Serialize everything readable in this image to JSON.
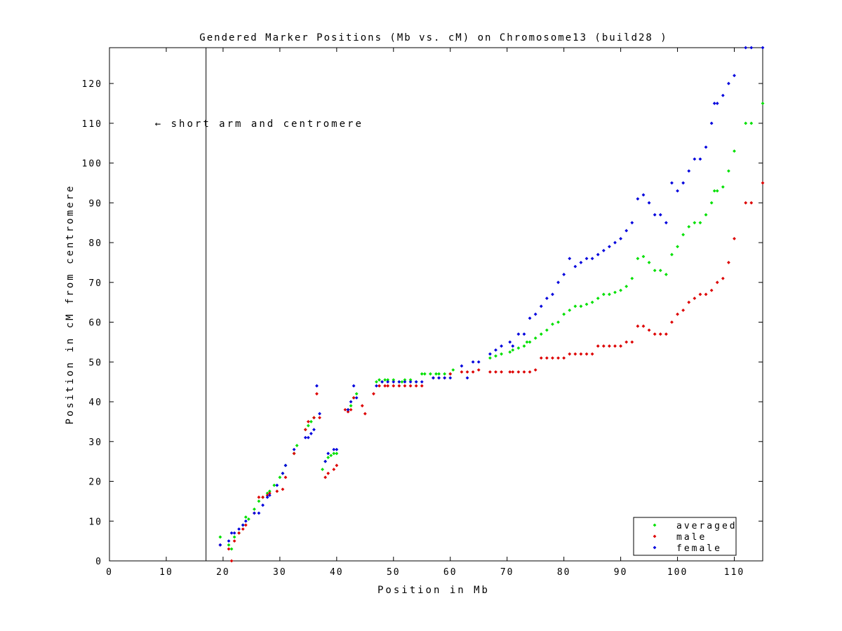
{
  "chart_data": {
    "type": "scatter",
    "title": "Gendered Marker Positions (Mb vs. cM) on Chromosome13 (build28 )",
    "xlabel": "Position in Mb",
    "ylabel": "Position in cM from centromere",
    "xlim": [
      0,
      115
    ],
    "ylim": [
      0,
      129
    ],
    "xticks": [
      0,
      10,
      20,
      30,
      40,
      50,
      60,
      70,
      80,
      90,
      100,
      110
    ],
    "yticks": [
      0,
      10,
      20,
      30,
      40,
      50,
      60,
      70,
      80,
      90,
      100,
      110,
      120
    ],
    "grid": false,
    "legend_position": "bottom-right",
    "centromere_line_x": 17,
    "annotation": {
      "text": "← short arm and centromere",
      "x": 8,
      "y": 110
    },
    "series": [
      {
        "name": "averaged",
        "color": "#00e000",
        "points": [
          [
            19.5,
            6
          ],
          [
            21,
            4
          ],
          [
            21.5,
            3
          ],
          [
            22,
            6
          ],
          [
            22.8,
            7
          ],
          [
            23.5,
            9
          ],
          [
            24,
            11
          ],
          [
            24.5,
            10.5
          ],
          [
            25.5,
            13
          ],
          [
            26.3,
            15
          ],
          [
            27,
            16
          ],
          [
            27.8,
            17
          ],
          [
            28.2,
            17.5
          ],
          [
            29,
            19
          ],
          [
            30,
            21
          ],
          [
            30.5,
            22
          ],
          [
            31,
            24
          ],
          [
            32.5,
            27
          ],
          [
            33,
            29
          ],
          [
            34.5,
            33
          ],
          [
            35,
            34
          ],
          [
            35.5,
            35
          ],
          [
            36,
            36
          ],
          [
            37.5,
            23
          ],
          [
            38,
            25
          ],
          [
            38.5,
            26
          ],
          [
            39,
            26.5
          ],
          [
            39.5,
            27
          ],
          [
            40,
            27
          ],
          [
            42,
            38
          ],
          [
            42.5,
            39
          ],
          [
            43,
            41
          ],
          [
            43.5,
            42
          ],
          [
            47,
            45
          ],
          [
            47.5,
            45.5
          ],
          [
            48,
            45
          ],
          [
            48.5,
            45.5
          ],
          [
            49,
            45.5
          ],
          [
            50,
            45.5
          ],
          [
            51,
            45
          ],
          [
            51.5,
            45
          ],
          [
            52,
            45.5
          ],
          [
            53,
            45.5
          ],
          [
            54,
            45
          ],
          [
            55,
            47
          ],
          [
            55.5,
            47
          ],
          [
            56.5,
            47
          ],
          [
            57.5,
            47
          ],
          [
            58,
            47
          ],
          [
            59,
            47
          ],
          [
            60,
            47
          ],
          [
            60.5,
            48
          ],
          [
            67,
            51
          ],
          [
            68,
            51.5
          ],
          [
            69,
            52
          ],
          [
            70.5,
            52.5
          ],
          [
            71,
            53
          ],
          [
            72,
            53.5
          ],
          [
            73,
            54
          ],
          [
            73.5,
            55
          ],
          [
            74,
            55
          ],
          [
            75,
            56
          ],
          [
            76,
            57
          ],
          [
            77,
            58
          ],
          [
            78,
            59.5
          ],
          [
            79,
            60
          ],
          [
            80,
            62
          ],
          [
            81,
            63
          ],
          [
            82,
            64
          ],
          [
            83,
            64
          ],
          [
            84,
            64.5
          ],
          [
            85,
            65
          ],
          [
            86,
            66
          ],
          [
            87,
            67
          ],
          [
            88,
            67
          ],
          [
            89,
            67.5
          ],
          [
            90,
            68
          ],
          [
            91,
            69
          ],
          [
            92,
            71
          ],
          [
            93,
            76
          ],
          [
            94,
            76.5
          ],
          [
            95,
            75
          ],
          [
            96,
            73
          ],
          [
            97,
            73
          ],
          [
            98,
            72
          ],
          [
            99,
            77
          ],
          [
            100,
            79
          ],
          [
            101,
            82
          ],
          [
            102,
            84
          ],
          [
            103,
            85
          ],
          [
            104,
            85
          ],
          [
            105,
            87
          ],
          [
            106,
            90
          ],
          [
            106.5,
            93
          ],
          [
            107,
            93
          ],
          [
            108,
            94
          ],
          [
            109,
            98
          ],
          [
            110,
            103
          ],
          [
            112,
            110
          ],
          [
            113,
            110
          ],
          [
            115,
            115
          ]
        ]
      },
      {
        "name": "male",
        "color": "#dd0000",
        "points": [
          [
            19.5,
            4
          ],
          [
            21,
            3
          ],
          [
            21.5,
            0
          ],
          [
            22,
            5
          ],
          [
            22.8,
            7
          ],
          [
            23.5,
            8
          ],
          [
            24,
            9
          ],
          [
            25.5,
            12
          ],
          [
            26.3,
            16
          ],
          [
            27,
            16
          ],
          [
            27.8,
            16.5
          ],
          [
            28.2,
            17
          ],
          [
            29.5,
            17.5
          ],
          [
            30.5,
            18
          ],
          [
            31,
            21
          ],
          [
            32.5,
            27
          ],
          [
            34.5,
            33
          ],
          [
            35,
            35
          ],
          [
            36,
            36
          ],
          [
            36.5,
            42
          ],
          [
            37,
            36
          ],
          [
            38,
            21
          ],
          [
            38.5,
            22
          ],
          [
            39.5,
            23
          ],
          [
            40,
            24
          ],
          [
            41.5,
            38
          ],
          [
            42,
            37.5
          ],
          [
            42.5,
            38
          ],
          [
            43,
            41
          ],
          [
            44.5,
            39
          ],
          [
            45,
            37
          ],
          [
            46.5,
            42
          ],
          [
            47.5,
            44
          ],
          [
            48.5,
            44
          ],
          [
            49,
            44
          ],
          [
            50,
            44
          ],
          [
            51,
            44
          ],
          [
            52,
            44
          ],
          [
            53,
            44
          ],
          [
            54,
            44
          ],
          [
            55,
            44
          ],
          [
            57,
            46
          ],
          [
            58,
            46
          ],
          [
            59,
            46
          ],
          [
            60,
            47
          ],
          [
            62,
            47.5
          ],
          [
            63,
            47.5
          ],
          [
            64,
            47.5
          ],
          [
            65,
            48
          ],
          [
            67,
            47.5
          ],
          [
            68,
            47.5
          ],
          [
            69,
            47.5
          ],
          [
            70.5,
            47.5
          ],
          [
            71,
            47.5
          ],
          [
            72,
            47.5
          ],
          [
            73,
            47.5
          ],
          [
            74,
            47.5
          ],
          [
            75,
            48
          ],
          [
            76,
            51
          ],
          [
            77,
            51
          ],
          [
            78,
            51
          ],
          [
            79,
            51
          ],
          [
            80,
            51
          ],
          [
            81,
            52
          ],
          [
            82,
            52
          ],
          [
            83,
            52
          ],
          [
            84,
            52
          ],
          [
            85,
            52
          ],
          [
            86,
            54
          ],
          [
            87,
            54
          ],
          [
            88,
            54
          ],
          [
            89,
            54
          ],
          [
            90,
            54
          ],
          [
            91,
            55
          ],
          [
            92,
            55
          ],
          [
            93,
            59
          ],
          [
            94,
            59
          ],
          [
            95,
            58
          ],
          [
            96,
            57
          ],
          [
            97,
            57
          ],
          [
            98,
            57
          ],
          [
            99,
            60
          ],
          [
            100,
            62
          ],
          [
            101,
            63
          ],
          [
            102,
            65
          ],
          [
            103,
            66
          ],
          [
            104,
            67
          ],
          [
            105,
            67
          ],
          [
            106,
            68
          ],
          [
            107,
            70
          ],
          [
            108,
            71
          ],
          [
            109,
            75
          ],
          [
            110,
            81
          ],
          [
            112,
            90
          ],
          [
            113,
            90
          ],
          [
            115,
            95
          ]
        ]
      },
      {
        "name": "female",
        "color": "#0000dd",
        "points": [
          [
            19.5,
            4
          ],
          [
            21,
            5
          ],
          [
            21.5,
            7
          ],
          [
            22,
            7
          ],
          [
            22.8,
            8
          ],
          [
            23.5,
            9
          ],
          [
            24,
            10
          ],
          [
            25.5,
            12
          ],
          [
            26.3,
            12
          ],
          [
            27,
            14
          ],
          [
            27.8,
            16
          ],
          [
            28.2,
            16.5
          ],
          [
            29.5,
            19
          ],
          [
            30.5,
            22
          ],
          [
            31,
            24
          ],
          [
            32.5,
            28
          ],
          [
            34.5,
            31
          ],
          [
            35,
            31
          ],
          [
            35.5,
            32
          ],
          [
            36,
            33
          ],
          [
            36.5,
            44
          ],
          [
            37,
            37
          ],
          [
            38,
            25
          ],
          [
            38.5,
            27
          ],
          [
            39.5,
            28
          ],
          [
            40,
            28
          ],
          [
            42,
            38
          ],
          [
            42.5,
            40
          ],
          [
            43,
            44
          ],
          [
            43.5,
            41
          ],
          [
            47,
            44
          ],
          [
            48,
            45
          ],
          [
            49,
            45
          ],
          [
            50,
            45
          ],
          [
            51,
            45
          ],
          [
            52,
            45
          ],
          [
            53,
            45
          ],
          [
            54,
            45
          ],
          [
            55,
            45
          ],
          [
            57,
            46
          ],
          [
            58,
            46
          ],
          [
            59,
            46
          ],
          [
            60,
            46
          ],
          [
            62,
            49
          ],
          [
            63,
            46
          ],
          [
            64,
            50
          ],
          [
            65,
            50
          ],
          [
            67,
            52
          ],
          [
            68,
            53
          ],
          [
            69,
            54
          ],
          [
            70.5,
            55
          ],
          [
            71,
            54
          ],
          [
            72,
            57
          ],
          [
            73,
            57
          ],
          [
            74,
            61
          ],
          [
            75,
            62
          ],
          [
            76,
            64
          ],
          [
            77,
            66
          ],
          [
            78,
            67
          ],
          [
            79,
            70
          ],
          [
            80,
            72
          ],
          [
            81,
            76
          ],
          [
            82,
            74
          ],
          [
            83,
            75
          ],
          [
            84,
            76
          ],
          [
            85,
            76
          ],
          [
            86,
            77
          ],
          [
            87,
            78
          ],
          [
            88,
            79
          ],
          [
            89,
            80
          ],
          [
            90,
            81
          ],
          [
            91,
            83
          ],
          [
            92,
            85
          ],
          [
            93,
            91
          ],
          [
            94,
            92
          ],
          [
            95,
            90
          ],
          [
            96,
            87
          ],
          [
            97,
            87
          ],
          [
            98,
            85
          ],
          [
            99,
            95
          ],
          [
            100,
            93
          ],
          [
            101,
            95
          ],
          [
            102,
            98
          ],
          [
            103,
            101
          ],
          [
            104,
            101
          ],
          [
            105,
            104
          ],
          [
            106,
            110
          ],
          [
            106.5,
            115
          ],
          [
            107,
            115
          ],
          [
            108,
            117
          ],
          [
            109,
            120
          ],
          [
            110,
            122
          ],
          [
            112,
            129
          ],
          [
            113,
            129
          ],
          [
            115,
            129
          ]
        ]
      }
    ]
  }
}
